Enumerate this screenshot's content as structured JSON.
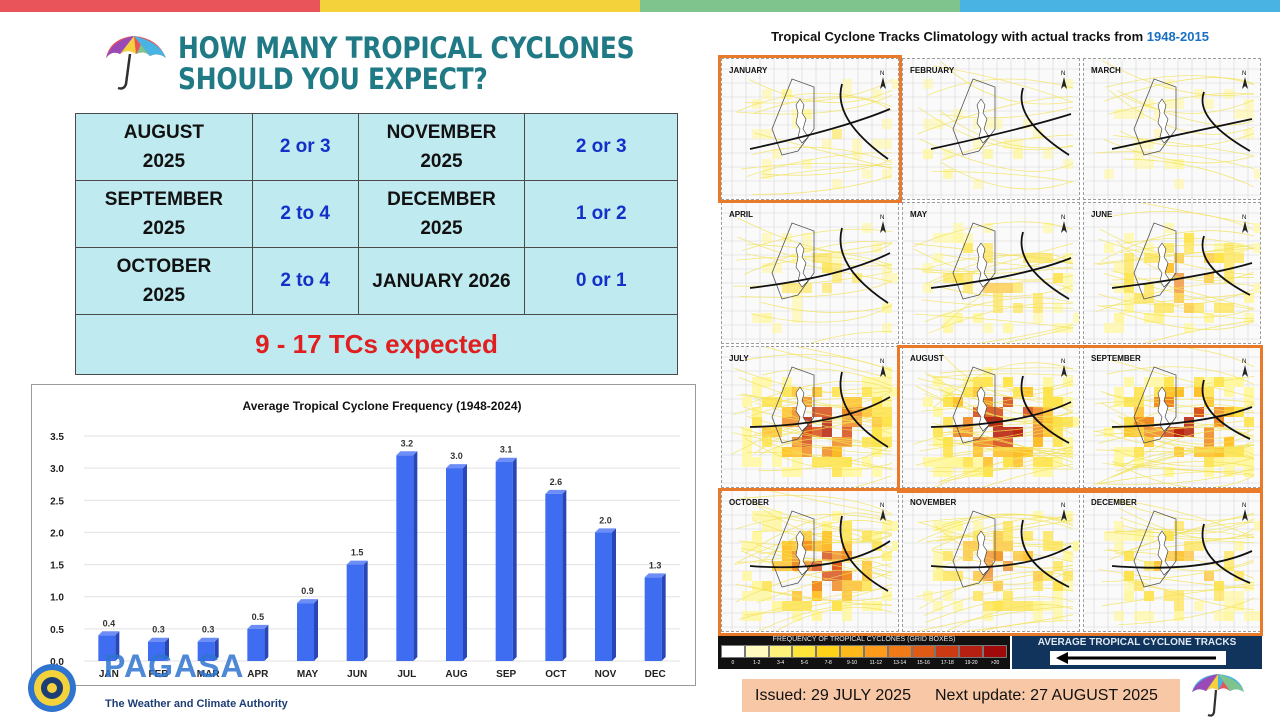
{
  "colors": {
    "title": "#1f7a86",
    "table_bg": "#bfeaf0",
    "value_blue": "#1330c8",
    "total_red": "#e02020",
    "bar_blue": "#3f6df2",
    "highlight_orange": "#e97a2a",
    "issued_bg": "#f7c7a6",
    "top_strip": [
      "#e8545a",
      "#f4d23b",
      "#7fc48c",
      "#49b4e4"
    ]
  },
  "header": {
    "title_line1": "HOW MANY TROPICAL CYCLONES",
    "title_line2": "SHOULD YOU EXPECT?",
    "icon": "umbrella-icon"
  },
  "forecast_table": {
    "rows": [
      [
        {
          "month": "AUGUST\n2025",
          "value": "2 or 3"
        },
        {
          "month": "NOVEMBER\n2025",
          "value": "2 or 3"
        }
      ],
      [
        {
          "month": "SEPTEMBER\n2025",
          "value": "2 to 4"
        },
        {
          "month": "DECEMBER\n2025",
          "value": "1 or 2"
        }
      ],
      [
        {
          "month": "OCTOBER\n2025",
          "value": "2 to 4"
        },
        {
          "month": "JANUARY 2026",
          "value": "0 or 1"
        }
      ]
    ],
    "total": "9 - 17 TCs expected"
  },
  "chart_data": {
    "type": "bar",
    "title": "Average Tropical Cyclone Frequency (1948-2024)",
    "categories": [
      "JAN",
      "FEB",
      "MAR",
      "APR",
      "MAY",
      "JUN",
      "JUL",
      "AUG",
      "SEP",
      "OCT",
      "NOV",
      "DEC"
    ],
    "values": [
      0.4,
      0.3,
      0.3,
      0.5,
      0.9,
      1.5,
      3.2,
      3.0,
      3.1,
      2.6,
      2.0,
      1.3
    ],
    "value_labels": [
      "0.4",
      "0.3",
      "0.3",
      "0.5",
      "0.9",
      "1.5",
      "3.2",
      "3.0",
      "3.1",
      "2.6",
      "2.0",
      "1.3"
    ],
    "ylim": [
      0,
      3.5
    ],
    "yticks": [
      "0.0",
      "0.5",
      "1.0",
      "1.5",
      "2.0",
      "2.5",
      "3.0",
      "3.5"
    ],
    "grid": true,
    "xlabel": "",
    "ylabel": ""
  },
  "climatology": {
    "title": "Tropical Cyclone Tracks Climatology with actual tracks from ",
    "year_range": "1948-2015",
    "panels": [
      {
        "label": "JANUARY",
        "intensity": 0.1
      },
      {
        "label": "FEBRUARY",
        "intensity": 0.05
      },
      {
        "label": "MARCH",
        "intensity": 0.08
      },
      {
        "label": "APRIL",
        "intensity": 0.15
      },
      {
        "label": "MAY",
        "intensity": 0.35
      },
      {
        "label": "JUNE",
        "intensity": 0.5
      },
      {
        "label": "JULY",
        "intensity": 0.9
      },
      {
        "label": "AUGUST",
        "intensity": 1.0
      },
      {
        "label": "SEPTEMBER",
        "intensity": 0.95
      },
      {
        "label": "OCTOBER",
        "intensity": 0.8
      },
      {
        "label": "NOVEMBER",
        "intensity": 0.6
      },
      {
        "label": "DECEMBER",
        "intensity": 0.45
      }
    ],
    "highlighted": [
      "JANUARY",
      "AUGUST",
      "SEPTEMBER",
      "OCTOBER",
      "NOVEMBER",
      "DECEMBER"
    ],
    "legend_frequency_title": "FREQUENCY OF TROPICAL CYCLONES (GRID BOXES)",
    "legend_bins": [
      "0",
      "1-2",
      "3-4",
      "5-6",
      "7-8",
      "9-10",
      "11-12",
      "13-14",
      "15-16",
      "17-18",
      "19-20",
      ">20"
    ],
    "legend_colors": [
      "#ffffff",
      "#fffbc0",
      "#fff27a",
      "#ffe53a",
      "#ffd21a",
      "#ffb81a",
      "#ff9a1a",
      "#f07a18",
      "#e05a16",
      "#cc3a14",
      "#b52012",
      "#a00a0a"
    ],
    "legend_tracks_title": "AVERAGE TROPICAL CYCLONE TRACKS"
  },
  "footer": {
    "issued": "Issued: 29 JULY 2025",
    "next_update": "Next update: 27 AUGUST 2025",
    "org_name": "PAGASA",
    "org_tagline": "The Weather and Climate Authority"
  }
}
